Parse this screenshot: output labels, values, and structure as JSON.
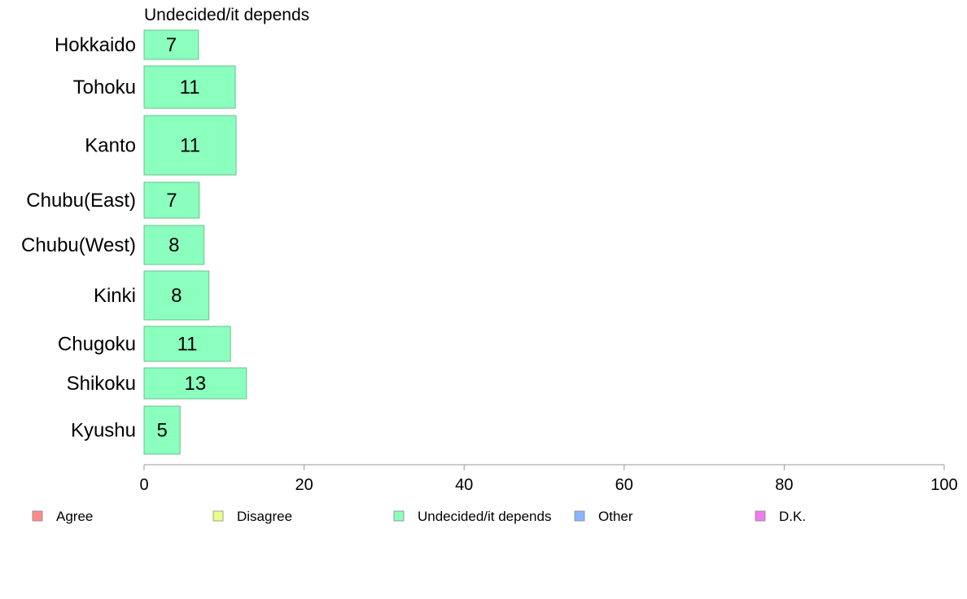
{
  "chart_data": {
    "type": "bar",
    "orientation": "horizontal",
    "title": "Undecided/it depends",
    "categories": [
      "Hokkaido",
      "Tohoku",
      "Kanto",
      "Chubu(East)",
      "Chubu(West)",
      "Kinki",
      "Chugoku",
      "Shikoku",
      "Kyushu"
    ],
    "values": [
      7,
      11,
      11,
      7,
      8,
      8,
      11,
      13,
      5
    ],
    "bar_values": [
      6.8,
      11.4,
      11.5,
      6.9,
      7.5,
      8.1,
      10.8,
      12.8,
      4.5
    ],
    "xlim": [
      0,
      100
    ],
    "xticks": [
      0,
      20,
      40,
      60,
      80,
      100
    ],
    "xlabel": "",
    "ylabel": "",
    "bar_color": "#8affbe",
    "bar_stroke": "#6fbf8f",
    "grid": false,
    "legend_position": "bottom",
    "legend": [
      {
        "label": "Agree",
        "color": "#ff8a8a"
      },
      {
        "label": "Disagree",
        "color": "#e8ff8a"
      },
      {
        "label": "Undecided/it depends",
        "color": "#8affbe"
      },
      {
        "label": "Other",
        "color": "#8ab4ff"
      },
      {
        "label": "D.K.",
        "color": "#ee7aee"
      }
    ]
  }
}
